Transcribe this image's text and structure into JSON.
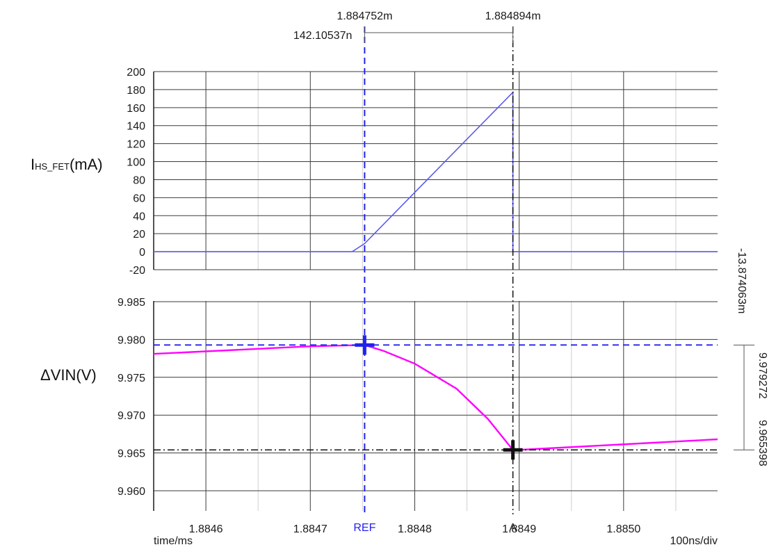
{
  "chart_data": [
    {
      "type": "line",
      "panel": "top",
      "ylabel_main": "I",
      "ylabel_sub": "HS_FET",
      "ylabel_unit": "(mA)",
      "ylim": [
        -20,
        200
      ],
      "yticks": [
        -20,
        0,
        20,
        40,
        60,
        80,
        100,
        120,
        140,
        160,
        180,
        200
      ],
      "ytick_labels": [
        "-20",
        "0",
        "20",
        "40",
        "60",
        "80",
        "100",
        "120",
        "140",
        "160",
        "180",
        "200"
      ],
      "grid": true,
      "series": [
        {
          "color": "#5a5aee",
          "x": [
            1.88455,
            1.88474,
            1.884752,
            1.884894,
            1.884894,
            1.88509
          ],
          "y": [
            0,
            0,
            9,
            177,
            0,
            0
          ]
        }
      ]
    },
    {
      "type": "line",
      "panel": "bottom",
      "ylabel": "ΔVIN(V)",
      "ylim": [
        9.9595,
        9.9865
      ],
      "yticks": [
        9.96,
        9.965,
        9.97,
        9.975,
        9.98,
        9.985
      ],
      "ytick_labels": [
        "9.960",
        "9.965",
        "9.970",
        "9.975",
        "9.980",
        "9.985"
      ],
      "grid": true,
      "series": [
        {
          "color": "#ff00ff",
          "x": [
            1.88455,
            1.8847,
            1.884752,
            1.88477,
            1.8848,
            1.88484,
            1.88487,
            1.884894,
            1.8849,
            1.88509
          ],
          "y": [
            9.9781,
            9.9791,
            9.97927,
            9.9785,
            9.9768,
            9.9735,
            9.9695,
            9.9654,
            9.9654,
            9.9668
          ]
        }
      ]
    }
  ],
  "x_axis": {
    "xlim": [
      1.88455,
      1.88509
    ],
    "ticks": [
      1.8846,
      1.8847,
      1.8848,
      1.8849,
      1.885
    ],
    "tick_labels": [
      "1.8846",
      "1.8847",
      "1.8848",
      "1.8849",
      "1.8850"
    ],
    "minor_ticks": [
      1.88465,
      1.88475,
      1.88485,
      1.88495,
      1.88505
    ],
    "label": "time/ms",
    "scale_label": "100ns/div"
  },
  "cursors": {
    "ref": {
      "name": "REF",
      "x": 1.884752,
      "y": 9.979272,
      "x_label": "1.884752m",
      "y_label": "9.979272",
      "color": "#2222ee"
    },
    "a": {
      "name": "A",
      "x": 1.884894,
      "y": 9.965398,
      "x_label": "1.884894m",
      "y_label": "9.965398",
      "color": "#111111"
    },
    "delta_x_label": "142.10537n",
    "delta_y_label": "-13.874063m"
  }
}
